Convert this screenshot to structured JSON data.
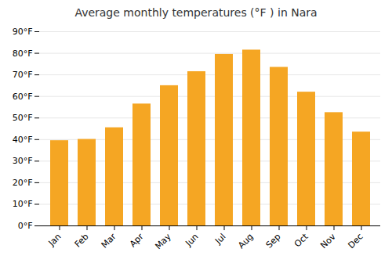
{
  "chart_data": {
    "type": "bar",
    "title": "Average monthly temperatures (°F ) in Nara",
    "categories": [
      "Jan",
      "Feb",
      "Mar",
      "Apr",
      "May",
      "Jun",
      "Jul",
      "Aug",
      "Sep",
      "Oct",
      "Nov",
      "Dec"
    ],
    "values": [
      39.5,
      40.1,
      45.5,
      56.5,
      65.0,
      71.5,
      79.5,
      81.5,
      73.5,
      62.0,
      52.5,
      43.5
    ],
    "color": "#F5A623",
    "ylim": [
      0,
      90
    ],
    "yticks": [
      {
        "value": 0,
        "label": "0°F"
      },
      {
        "value": 10,
        "label": "10°F"
      },
      {
        "value": 20,
        "label": "20°F"
      },
      {
        "value": 30,
        "label": "30°F"
      },
      {
        "value": 40,
        "label": "40°F"
      },
      {
        "value": 50,
        "label": "50°F"
      },
      {
        "value": 60,
        "label": "60°F"
      },
      {
        "value": 70,
        "label": "70°F"
      },
      {
        "value": 80,
        "label": "80°F"
      },
      {
        "value": 90,
        "label": "90°F"
      }
    ],
    "grid": true
  }
}
